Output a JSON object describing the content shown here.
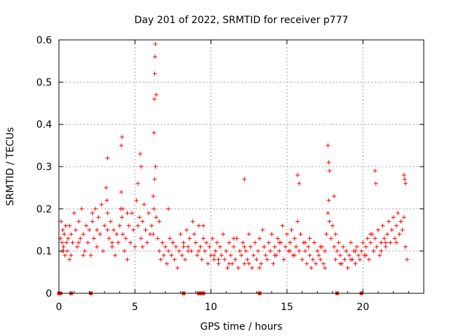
{
  "chart_data": {
    "type": "scatter",
    "title": "Day 201 of 2022, SRMTID for receiver p777",
    "xlabel": "GPS time / hours",
    "ylabel": "SRMTID / TECUs",
    "xlim": [
      0,
      24
    ],
    "ylim": [
      0,
      0.6
    ],
    "xticks": [
      0,
      5,
      10,
      15,
      20
    ],
    "xtick_labels": [
      "0",
      "5",
      "10",
      "15",
      "20"
    ],
    "yticks": [
      0,
      0.1,
      0.2,
      0.3,
      0.4,
      0.5,
      0.6
    ],
    "ytick_labels": [
      "0",
      "0.1",
      "0.2",
      "0.3",
      "0.4",
      "0.5",
      "0.6"
    ],
    "grid": true,
    "marker": "+",
    "color": "#ff0000",
    "series": [
      {
        "name": "SRMTID",
        "x": [
          0.1,
          0.15,
          0.2,
          0.25,
          0.3,
          0.35,
          0.4,
          0.45,
          0.5,
          0.55,
          0.6,
          0.7,
          0.8,
          0.9,
          1.0,
          1.1,
          1.2,
          1.3,
          1.4,
          1.5,
          1.6,
          1.7,
          1.8,
          1.9,
          2.0,
          2.1,
          2.2,
          2.3,
          2.4,
          2.5,
          2.6,
          2.7,
          2.8,
          2.9,
          3.0,
          3.1,
          3.15,
          3.2,
          3.3,
          3.4,
          3.5,
          3.6,
          3.7,
          3.8,
          3.9,
          4.0,
          4.05,
          4.1,
          4.15,
          4.2,
          4.3,
          4.4,
          4.5,
          4.6,
          4.7,
          4.8,
          4.9,
          5.0,
          5.1,
          5.2,
          5.3,
          5.4,
          5.5,
          5.6,
          5.7,
          5.8,
          5.9,
          6.0,
          6.1,
          6.2,
          6.25,
          6.3,
          6.35,
          6.4,
          6.5,
          6.6,
          6.7,
          6.8,
          6.9,
          7.0,
          7.1,
          7.2,
          7.3,
          7.4,
          7.5,
          7.6,
          7.7,
          7.8,
          7.9,
          8.0,
          8.1,
          8.2,
          8.3,
          8.4,
          8.5,
          8.6,
          8.7,
          8.8,
          8.9,
          9.0,
          9.1,
          9.2,
          9.3,
          9.4,
          9.5,
          9.6,
          9.7,
          9.8,
          9.9,
          10.0,
          10.1,
          10.2,
          10.3,
          10.4,
          10.5,
          10.6,
          10.7,
          10.8,
          10.9,
          11.0,
          11.1,
          11.2,
          11.3,
          11.4,
          11.5,
          11.6,
          11.7,
          11.8,
          11.9,
          12.0,
          12.1,
          12.2,
          12.3,
          12.4,
          12.5,
          12.6,
          12.7,
          12.8,
          12.9,
          13.0,
          13.1,
          13.2,
          13.3,
          13.4,
          13.5,
          13.6,
          13.7,
          13.8,
          13.9,
          14.0,
          14.1,
          14.2,
          14.3,
          14.4,
          14.5,
          14.6,
          14.7,
          14.8,
          14.9,
          15.0,
          15.1,
          15.2,
          15.3,
          15.4,
          15.5,
          15.6,
          15.7,
          15.8,
          15.9,
          16.0,
          16.1,
          16.2,
          16.3,
          16.4,
          16.5,
          16.6,
          16.7,
          16.8,
          16.9,
          17.0,
          17.1,
          17.2,
          17.3,
          17.4,
          17.5,
          17.6,
          17.7,
          17.75,
          17.8,
          17.9,
          18.0,
          18.1,
          18.2,
          18.3,
          18.4,
          18.5,
          18.6,
          18.7,
          18.8,
          18.9,
          19.0,
          19.1,
          19.2,
          19.3,
          19.4,
          19.5,
          19.6,
          19.7,
          19.8,
          19.9,
          20.0,
          20.1,
          20.2,
          20.3,
          20.4,
          20.5,
          20.6,
          20.7,
          20.8,
          20.9,
          21.0,
          21.1,
          21.2,
          21.3,
          21.4,
          21.5,
          21.6,
          21.7,
          21.8,
          21.9,
          22.0,
          22.1,
          22.2,
          22.3,
          22.4,
          22.5,
          22.6,
          22.7,
          22.8,
          22.9,
          0.3,
          0.8,
          1.6,
          2.5,
          3.5,
          4.5,
          5.5,
          6.6,
          7.5,
          8.5,
          9.5,
          10.5,
          11.5,
          12.5,
          13.5,
          14.5,
          15.5,
          16.5,
          17.5,
          18.5,
          19.5,
          20.5,
          21.5,
          22.5,
          0.2,
          0.7,
          1.3,
          2.2,
          3.2,
          4.2,
          5.2,
          6.2,
          7.2,
          8.2,
          9.2,
          10.2,
          11.2,
          12.2,
          13.2,
          14.2,
          15.2,
          16.2,
          17.2,
          18.2,
          19.2,
          20.2,
          21.2,
          22.2,
          3.2,
          4.1,
          4.15,
          5.35,
          5.4,
          6.25,
          6.28,
          6.3,
          6.32,
          6.35,
          6.4,
          12.2,
          15.7,
          15.8,
          17.7,
          17.75,
          17.8,
          18.1,
          20.8,
          20.85,
          22.7,
          22.75,
          22.8,
          0.0,
          0.1,
          0.8,
          2.1,
          8.2,
          9.2,
          9.3,
          9.5,
          13.2,
          18.3,
          19.9
        ],
        "y": [
          0.13,
          0.17,
          0.12,
          0.15,
          0.11,
          0.14,
          0.09,
          0.16,
          0.12,
          0.1,
          0.13,
          0.16,
          0.09,
          0.12,
          0.19,
          0.15,
          0.11,
          0.17,
          0.13,
          0.2,
          0.14,
          0.1,
          0.16,
          0.12,
          0.15,
          0.09,
          0.17,
          0.13,
          0.2,
          0.11,
          0.18,
          0.14,
          0.21,
          0.1,
          0.16,
          0.25,
          0.22,
          0.19,
          0.13,
          0.17,
          0.11,
          0.15,
          0.09,
          0.14,
          0.12,
          0.16,
          0.2,
          0.24,
          0.18,
          0.14,
          0.1,
          0.13,
          0.08,
          0.16,
          0.12,
          0.19,
          0.15,
          0.11,
          0.22,
          0.26,
          0.18,
          0.13,
          0.17,
          0.21,
          0.15,
          0.12,
          0.19,
          0.14,
          0.16,
          0.23,
          0.2,
          0.27,
          0.3,
          0.18,
          0.13,
          0.1,
          0.08,
          0.12,
          0.09,
          0.11,
          0.07,
          0.1,
          0.13,
          0.09,
          0.12,
          0.08,
          0.11,
          0.06,
          0.1,
          0.14,
          0.09,
          0.12,
          0.08,
          0.15,
          0.11,
          0.13,
          0.1,
          0.17,
          0.14,
          0.12,
          0.09,
          0.16,
          0.11,
          0.08,
          0.13,
          0.1,
          0.12,
          0.07,
          0.11,
          0.09,
          0.13,
          0.08,
          0.1,
          0.12,
          0.07,
          0.11,
          0.09,
          0.14,
          0.08,
          0.1,
          0.06,
          0.12,
          0.09,
          0.07,
          0.11,
          0.08,
          0.13,
          0.06,
          0.1,
          0.09,
          0.12,
          0.07,
          0.1,
          0.08,
          0.14,
          0.11,
          0.06,
          0.09,
          0.12,
          0.08,
          0.1,
          0.13,
          0.07,
          0.15,
          0.11,
          0.09,
          0.08,
          0.12,
          0.1,
          0.14,
          0.07,
          0.11,
          0.09,
          0.13,
          0.1,
          0.12,
          0.16,
          0.08,
          0.11,
          0.14,
          0.1,
          0.12,
          0.15,
          0.09,
          0.13,
          0.11,
          0.17,
          0.1,
          0.14,
          0.08,
          0.12,
          0.1,
          0.07,
          0.11,
          0.09,
          0.06,
          0.08,
          0.12,
          0.07,
          0.1,
          0.09,
          0.08,
          0.11,
          0.07,
          0.06,
          0.14,
          0.19,
          0.22,
          0.17,
          0.13,
          0.16,
          0.11,
          0.08,
          0.1,
          0.12,
          0.09,
          0.07,
          0.11,
          0.08,
          0.1,
          0.06,
          0.09,
          0.12,
          0.08,
          0.1,
          0.07,
          0.11,
          0.09,
          0.08,
          0.1,
          0.12,
          0.09,
          0.11,
          0.13,
          0.08,
          0.12,
          0.14,
          0.1,
          0.13,
          0.11,
          0.15,
          0.09,
          0.12,
          0.16,
          0.13,
          0.11,
          0.14,
          0.17,
          0.12,
          0.15,
          0.18,
          0.13,
          0.16,
          0.19,
          0.14,
          0.17,
          0.15,
          0.18,
          0.11,
          0.08,
          0.1,
          0.14,
          0.09,
          0.15,
          0.12,
          0.19,
          0.11,
          0.17,
          0.12,
          0.1,
          0.16,
          0.08,
          0.13,
          0.07,
          0.11,
          0.12,
          0.09,
          0.13,
          0.1,
          0.07,
          0.1,
          0.14,
          0.12,
          0.17,
          0.1,
          0.08,
          0.12,
          0.19,
          0.15,
          0.2,
          0.16,
          0.14,
          0.2,
          0.11,
          0.1,
          0.09,
          0.07,
          0.11,
          0.06,
          0.09,
          0.1,
          0.12,
          0.11,
          0.14,
          0.08,
          0.09,
          0.1,
          0.12,
          0.32,
          0.35,
          0.37,
          0.33,
          0.3,
          0.38,
          0.46,
          0.52,
          0.56,
          0.59,
          0.47,
          0.27,
          0.28,
          0.26,
          0.35,
          0.31,
          0.29,
          0.23,
          0.29,
          0.26,
          0.28,
          0.27,
          0.26,
          0.0,
          0.0,
          0.0,
          0.0,
          0.0,
          0.0,
          0.0,
          0.0,
          0.0,
          0.0,
          0.0
        ]
      }
    ]
  }
}
